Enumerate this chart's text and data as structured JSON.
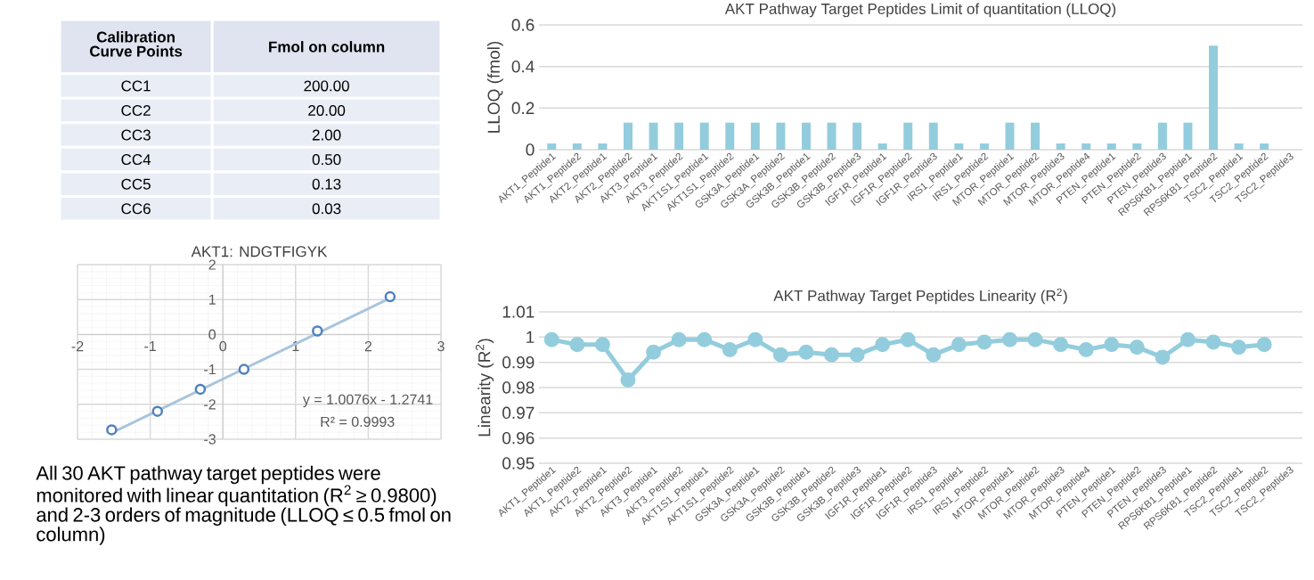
{
  "chart_data": [
    {
      "type": "other",
      "xlabel": "Calibration Curve Points",
      "ylabel": "Fmol on column",
      "categories": [
        "CC1",
        "CC2",
        "CC3",
        "CC4",
        "CC5",
        "CC6"
      ],
      "value_labels": [
        "200.00",
        "20.00",
        "2.00",
        "0.50",
        "0.13",
        "0.03"
      ]
    },
    {
      "type": "scatter",
      "title": "AKT1: NDGTFIGYK",
      "xlim": [
        -2,
        3
      ],
      "ylim": [
        -3,
        2
      ],
      "xticks": [
        -2,
        -1,
        0,
        1,
        2,
        3
      ],
      "yticks": [
        -3,
        -2,
        -1,
        0,
        1,
        2
      ],
      "grid": true,
      "series": [
        {
          "type": "line",
          "color": "#a9c5dd",
          "x": [
            -1.53,
            2.3
          ],
          "values": [
            -2.82,
            1.04
          ],
          "marker": "none"
        },
        {
          "type": "scatter",
          "color": "#4f81bd",
          "x": [
            -1.53,
            -0.9,
            -0.31,
            0.29,
            1.3,
            2.3
          ],
          "values": [
            -2.73,
            -2.2,
            -1.57,
            -1.0,
            0.1,
            1.08
          ],
          "marker": "circle"
        }
      ],
      "annotations": [
        "y = 1.0076x - 1.2741",
        "R² = 0.9993",
        "All 30 AKT pathway target peptides were monitored with linear quantitation (R$^{2}$ ≥ 0.9800) and 2-3 orders of magnitude (LLOQ ≤ 0.5 fmol on column)"
      ]
    },
    {
      "type": "bar",
      "title": "AKT Pathway Target Peptides Limit of quantitation (LLOQ)",
      "ylabel": "LLOQ (fmol)",
      "color": "#93cddd",
      "ylim": [
        0,
        0.6
      ],
      "yticks": [
        0,
        0.2,
        0.4,
        0.6
      ],
      "grid": "y",
      "categories": [
        "AKT1_Peptide1",
        "AKT1_Peptide2",
        "AKT2_Peptide1",
        "AKT2_Peptide2",
        "AKT3_Peptide1",
        "AKT3_Peptide2",
        "AKT1S1_Peptide1",
        "AKT1S1_Peptide2",
        "GSK3A_Peptide1",
        "GSK3A_Peptide2",
        "GSK3B_Peptide1",
        "GSK3B_Peptide2",
        "GSK3B_Peptide3",
        "IGF1R_Peptide1",
        "IGF1R_Peptide2",
        "IGF1R_Peptide3",
        "IRS1_Peptide1",
        "IRS1_Peptide2",
        "MTOR_Peptide1",
        "MTOR_Peptide2",
        "MTOR_Peptide3",
        "MTOR_Peptide4",
        "PTEN_Peptide1",
        "PTEN_Peptide2",
        "PTEN_Peptide3",
        "RPS6KB1_Peptide1",
        "RPS6KB1_Peptide2",
        "TSC2_Peptide1",
        "TSC2_Peptide2",
        "TSC2_Peptide3"
      ],
      "values": [
        0.03,
        0.03,
        0.03,
        0.13,
        0.13,
        0.13,
        0.13,
        0.13,
        0.13,
        0.13,
        0.13,
        0.13,
        0.13,
        0.03,
        0.13,
        0.13,
        0.03,
        0.03,
        0.13,
        0.13,
        0.03,
        0.03,
        0.03,
        0.03,
        0.13,
        0.13,
        0.5,
        0.03,
        0.03,
        null
      ]
    },
    {
      "type": "line",
      "title": "AKT Pathway Target Peptides Linearity (R$^{2}$)",
      "ylabel": "Linearity (R$^{2}$)",
      "color": "#93cddd",
      "marker": "circle",
      "ylim": [
        0.95,
        1.01
      ],
      "yticks": [
        0.95,
        0.96,
        0.97,
        0.98,
        0.99,
        1,
        1.01
      ],
      "grid": "y",
      "categories": [
        "AKT1_Peptide1",
        "AKT1_Peptide2",
        "AKT2_Peptide1",
        "AKT2_Peptide2",
        "AKT3_Peptide1",
        "AKT3_Peptide2",
        "AKT1S1_Peptide1",
        "AKT1S1_Peptide2",
        "GSK3A_Peptide1",
        "GSK3A_Peptide2",
        "GSK3B_Peptide1",
        "GSK3B_Peptide2",
        "GSK3B_Peptide3",
        "IGF1R_Peptide1",
        "IGF1R_Peptide2",
        "IGF1R_Peptide3",
        "IRS1_Peptide1",
        "IRS1_Peptide2",
        "MTOR_Peptide1",
        "MTOR_Peptide2",
        "MTOR_Peptide3",
        "MTOR_Peptide4",
        "PTEN_Peptide1",
        "PTEN_Peptide2",
        "PTEN_Peptide3",
        "RPS6KB1_Peptide1",
        "RPS6KB1_Peptide2",
        "TSC2_Peptide1",
        "TSC2_Peptide2",
        "TSC2_Peptide3"
      ],
      "values": [
        0.999,
        0.997,
        0.997,
        0.983,
        0.994,
        0.999,
        0.999,
        0.995,
        0.999,
        0.993,
        0.994,
        0.993,
        0.993,
        0.997,
        0.999,
        0.993,
        0.997,
        0.998,
        0.999,
        0.999,
        0.997,
        0.995,
        0.997,
        0.996,
        0.992,
        0.999,
        0.998,
        0.996,
        0.997,
        null
      ]
    }
  ]
}
